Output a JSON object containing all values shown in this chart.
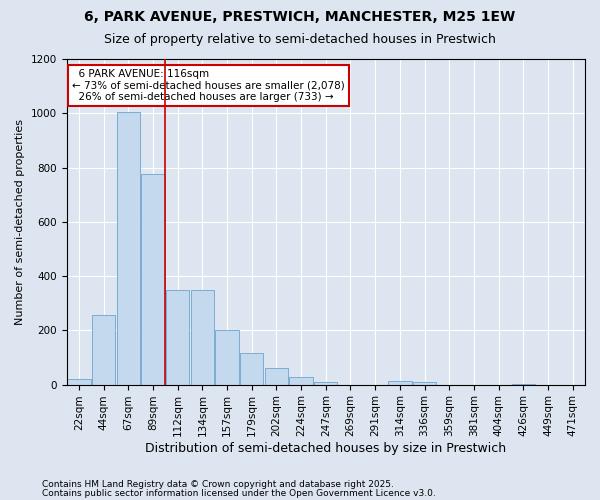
{
  "title": "6, PARK AVENUE, PRESTWICH, MANCHESTER, M25 1EW",
  "subtitle": "Size of property relative to semi-detached houses in Prestwich",
  "xlabel": "Distribution of semi-detached houses by size in Prestwich",
  "ylabel": "Number of semi-detached properties",
  "bar_color": "#c5d9ee",
  "bar_edge_color": "#7aadd4",
  "background_color": "#dde6f0",
  "plot_background": "#dde6f0",
  "categories": [
    "22sqm",
    "44sqm",
    "67sqm",
    "89sqm",
    "112sqm",
    "134sqm",
    "157sqm",
    "179sqm",
    "202sqm",
    "224sqm",
    "247sqm",
    "269sqm",
    "291sqm",
    "314sqm",
    "336sqm",
    "359sqm",
    "381sqm",
    "404sqm",
    "426sqm",
    "449sqm",
    "471sqm"
  ],
  "values": [
    22,
    258,
    1005,
    775,
    350,
    350,
    200,
    115,
    60,
    27,
    8,
    0,
    0,
    12,
    8,
    0,
    0,
    0,
    4,
    0,
    0
  ],
  "ylim": [
    0,
    1200
  ],
  "yticks": [
    0,
    200,
    400,
    600,
    800,
    1000,
    1200
  ],
  "property_label": "6 PARK AVENUE: 116sqm",
  "pct_smaller": 73,
  "pct_larger": 26,
  "count_smaller": 2078,
  "count_larger": 733,
  "vline_color": "#cc0000",
  "vline_bin_index": 4,
  "annotation_box_color": "#cc0000",
  "footnote1": "Contains HM Land Registry data © Crown copyright and database right 2025.",
  "footnote2": "Contains public sector information licensed under the Open Government Licence v3.0.",
  "title_fontsize": 10,
  "subtitle_fontsize": 9,
  "ylabel_fontsize": 8,
  "xlabel_fontsize": 9,
  "tick_fontsize": 7.5,
  "annot_fontsize": 7.5,
  "footnote_fontsize": 6.5
}
